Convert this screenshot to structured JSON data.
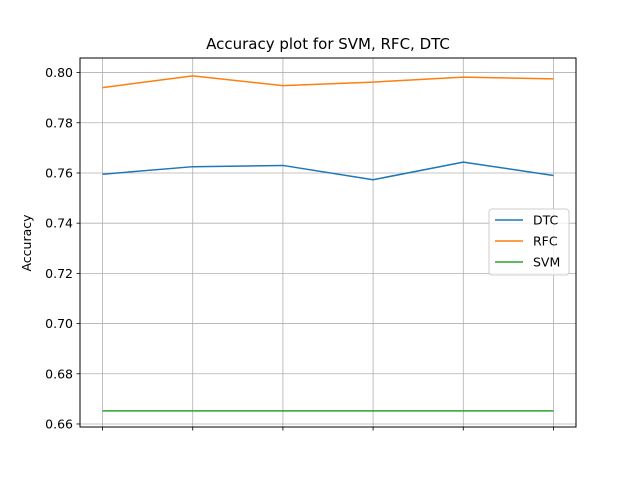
{
  "chart_data": {
    "type": "line",
    "title": "Accuracy plot  for SVM, RFC, DTC",
    "xlabel": "",
    "ylabel": "Accuracy",
    "x": [
      1,
      2,
      3,
      4,
      5,
      6
    ],
    "xlim": [
      0.75,
      6.25
    ],
    "ylim": [
      0.6588,
      0.8058
    ],
    "yticks": [
      "0.66",
      "0.68",
      "0.70",
      "0.72",
      "0.74",
      "0.76",
      "0.78",
      "0.80"
    ],
    "grid": true,
    "legend_position": "center-right",
    "series": [
      {
        "name": "DTC",
        "color": "#1f77b4",
        "values": [
          0.7595,
          0.7625,
          0.763,
          0.7573,
          0.7643,
          0.759
        ]
      },
      {
        "name": "RFC",
        "color": "#ff7f0e",
        "values": [
          0.794,
          0.7987,
          0.7948,
          0.7962,
          0.7982,
          0.7975
        ]
      },
      {
        "name": "SVM",
        "color": "#2ca02c",
        "values": [
          0.6652,
          0.6652,
          0.6652,
          0.6652,
          0.6652,
          0.6652
        ]
      }
    ]
  }
}
